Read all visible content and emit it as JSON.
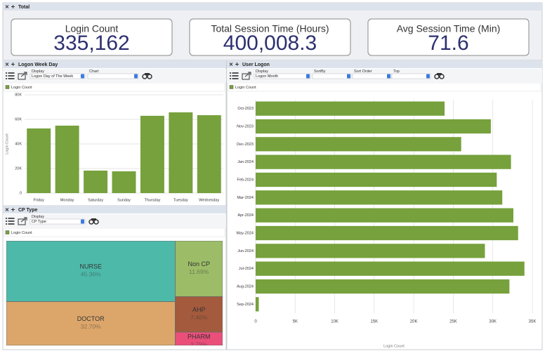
{
  "total_panel": {
    "title": "Total",
    "kpis": [
      {
        "label": "Login Count",
        "value": "335,162"
      },
      {
        "label": "Total Session Time (Hours)",
        "value": "400,008.3"
      },
      {
        "label": "Avg Session Time (Min)",
        "value": "71.6"
      }
    ]
  },
  "panels": [
    {
      "title": "Logon Week Day",
      "controls": [
        {
          "label": "Display",
          "value": "Logon Day of The Week"
        },
        {
          "label": "Chart"
        }
      ]
    },
    {
      "title": "User Logon",
      "controls": [
        {
          "label": "Display",
          "value": "Logon Month"
        },
        {
          "label": "SortBy"
        },
        {
          "label": "Sort Order"
        },
        {
          "label": "Top"
        }
      ]
    },
    {
      "title": "CP Type",
      "controls": [
        {
          "label": "Display",
          "value": "CP Type"
        }
      ]
    }
  ],
  "chart_data": [
    {
      "type": "bar",
      "orientation": "vertical",
      "y_label": "Login Count",
      "categories": [
        "Friday",
        "Monday",
        "Saturday",
        "Sunday",
        "Thursday",
        "Tuesday",
        "Wednesday"
      ],
      "series": [
        {
          "name": "Login Count",
          "color": "#76a13c",
          "values": [
            52600,
            54900,
            18300,
            17700,
            62900,
            65700,
            63400
          ]
        }
      ],
      "ylim": [
        0,
        80000
      ],
      "yticks": [
        0,
        {
          "value": 20000,
          "label": "20K"
        },
        {
          "value": 40000,
          "label": "40K"
        },
        {
          "value": 60000,
          "label": "60K"
        },
        {
          "value": 80000,
          "label": "80K"
        }
      ],
      "grid": true
    },
    {
      "type": "bar",
      "orientation": "horizontal",
      "x_label": "Login Count",
      "categories": [
        "Oct-2023",
        "Nov-2023",
        "Dec-2023",
        "Jan-2024",
        "Feb-2024",
        "Mar-2024",
        "Apr-2024",
        "May-2024",
        "Jun-2024",
        "Jul-2024",
        "Aug-2024",
        "Sep-2024"
      ],
      "series": [
        {
          "name": "Login Count",
          "color": "#76a13c",
          "values": [
            23900,
            29750,
            26000,
            32300,
            30500,
            31200,
            32600,
            33200,
            29000,
            34000,
            32100,
            400
          ]
        }
      ],
      "xlim": [
        0,
        35000
      ],
      "xticks": [
        0,
        {
          "value": 5000,
          "label": "5K"
        },
        {
          "value": 10000,
          "label": "10K"
        },
        {
          "value": 15000,
          "label": "15K"
        },
        {
          "value": 20000,
          "label": "20K"
        },
        {
          "value": 25000,
          "label": "25K"
        },
        {
          "value": 30000,
          "label": "30K"
        },
        {
          "value": 35000,
          "label": "35K"
        }
      ],
      "grid": true
    },
    {
      "type": "treemap",
      "categories": [
        "NURSE",
        "DOCTOR",
        "Non CP",
        "AHP",
        "PHARM"
      ],
      "series": [
        {
          "name": "Login Count",
          "color": "#76a13c",
          "values": [
            45.36,
            32.7,
            11.69,
            7.46,
            2.79
          ],
          "value_labels": [
            "45.36%",
            "32.70%",
            "11.69%",
            "7.46%",
            "2.79%"
          ],
          "colors": [
            "#4dbaa9",
            "#dca66b",
            "#9cbc68",
            "#a45a3c",
            "#ea4f7a"
          ]
        }
      ]
    }
  ]
}
